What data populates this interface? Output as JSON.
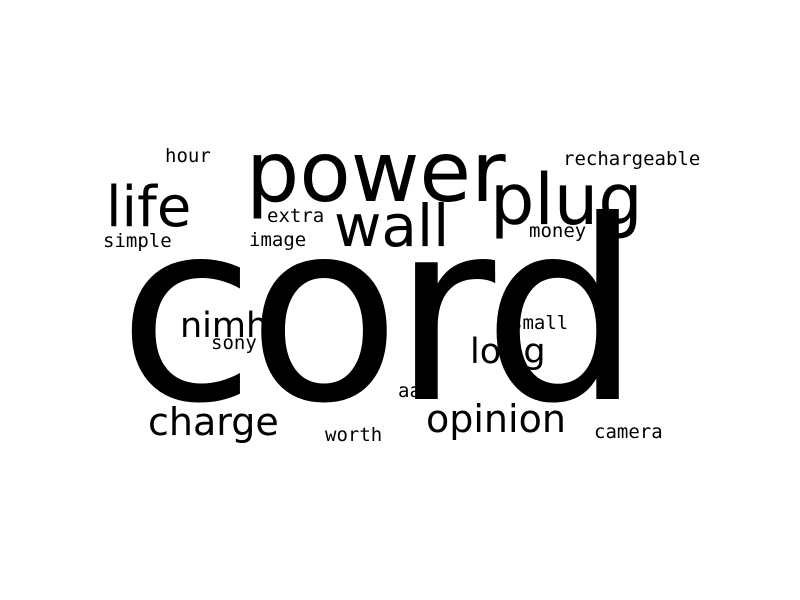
{
  "word_cloud": {
    "words": {
      "cord": "cord",
      "power": "power",
      "plug": "plug",
      "wall": "wall",
      "life": "life",
      "opinion": "opinion",
      "charge": "charge",
      "nimh": "nimh",
      "long": "long",
      "rechargeable": "rechargeable",
      "hour": "hour",
      "extra": "extra",
      "image": "image",
      "simple": "simple",
      "money": "money",
      "small": "small",
      "sony": "sony",
      "aaa": "aaa",
      "worth": "worth",
      "camera": "camera"
    },
    "text_color": "#000000",
    "background_color": "#ffffff"
  }
}
